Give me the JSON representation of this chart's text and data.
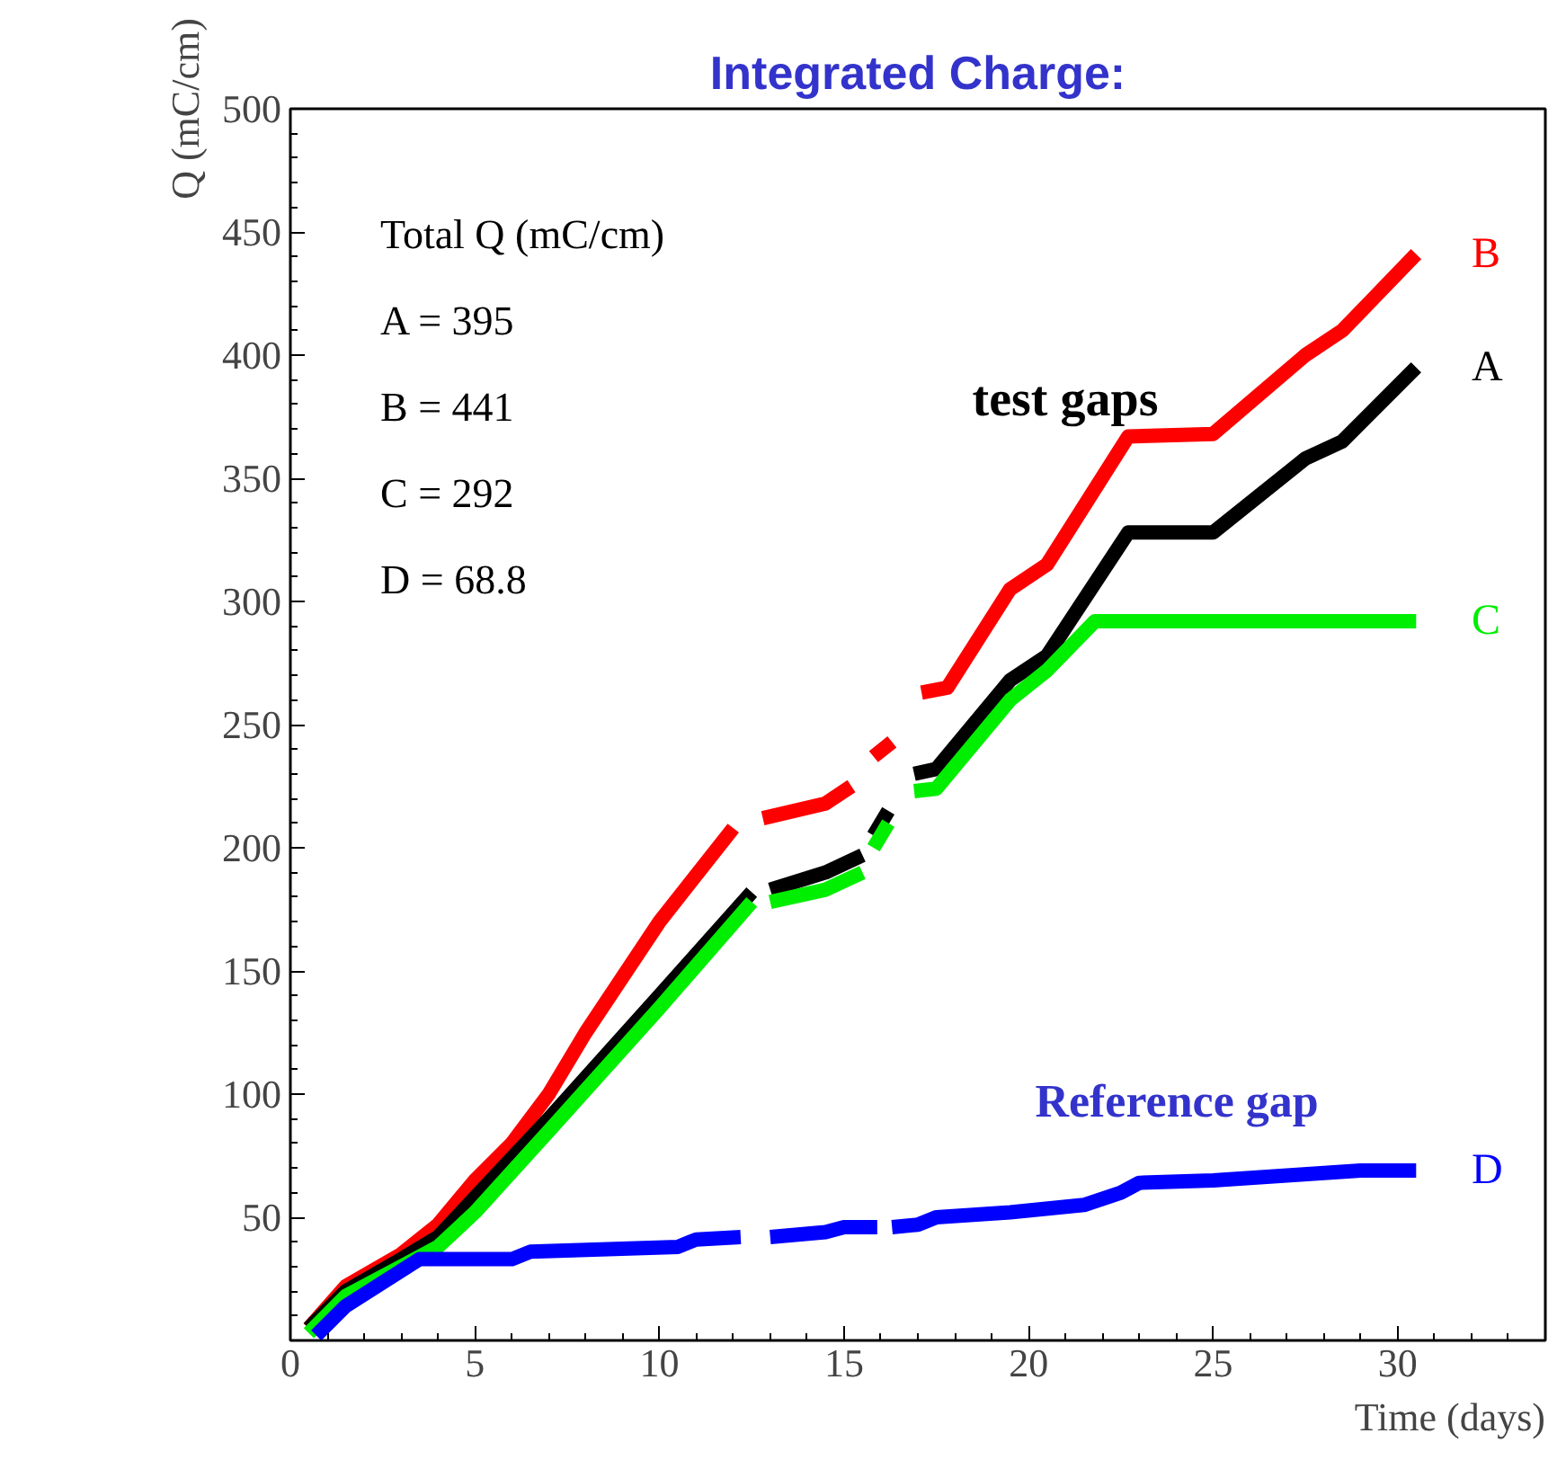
{
  "chart_data": {
    "type": "line",
    "title": "Integrated Charge:",
    "xlabel": "Time (days)",
    "ylabel": "Q (mC/cm)",
    "xlim": [
      0,
      34
    ],
    "ylim": [
      0,
      500
    ],
    "xticks": [
      0,
      5,
      10,
      15,
      20,
      25,
      30
    ],
    "yticks": [
      50,
      100,
      150,
      200,
      250,
      300,
      350,
      400,
      450,
      500
    ],
    "grid": false,
    "annotations": [
      "Total Q (mC/cm)",
      "A = 395",
      "B = 441",
      "C = 292",
      "D = 68.8",
      "test gaps",
      "Reference gap"
    ],
    "series": [
      {
        "name": "B",
        "color": "#ff0000",
        "x": [
          0.5,
          1.5,
          3,
          4,
          5,
          6,
          7,
          8,
          10,
          12,
          12.4,
          12.8,
          14.5,
          15.2,
          15.5,
          15.8,
          16.3,
          16.7,
          17.1,
          17.8,
          19.5,
          20.5,
          22.7,
          25,
          27.5,
          28.5,
          30.5
        ],
        "values": [
          5,
          22,
          35,
          47,
          65,
          80,
          100,
          125,
          170,
          208,
          null,
          212,
          218,
          225,
          null,
          237,
          243,
          null,
          263,
          265,
          305,
          315,
          367,
          368,
          400,
          410,
          441
        ]
      },
      {
        "name": "A",
        "color": "#000000",
        "x": [
          0.5,
          1.5,
          3,
          4,
          5,
          7,
          10,
          12.5,
          12.7,
          13,
          14.5,
          15.5,
          15.6,
          15.8,
          16.2,
          16.5,
          16.9,
          17.5,
          19.5,
          20.5,
          22.7,
          25,
          27.5,
          28.5,
          30.5
        ],
        "values": [
          5,
          20,
          33,
          42,
          58,
          90,
          140,
          182,
          null,
          183,
          190,
          197,
          null,
          205,
          215,
          null,
          230,
          232,
          268,
          278,
          328,
          328,
          358,
          365,
          395
        ]
      },
      {
        "name": "C",
        "color": "#00ee00",
        "x": [
          0.5,
          1.5,
          3,
          4,
          5,
          7,
          10,
          12.5,
          12.7,
          13,
          14.5,
          15.5,
          15.6,
          15.8,
          16.2,
          16.5,
          16.9,
          17.5,
          19.5,
          20.5,
          21.8,
          30.5
        ],
        "values": [
          3,
          18,
          30,
          38,
          52,
          85,
          135,
          178,
          null,
          178,
          183,
          190,
          null,
          200,
          210,
          null,
          223,
          224,
          260,
          272,
          292,
          292
        ]
      },
      {
        "name": "D",
        "color": "#0000ff",
        "x": [
          0.7,
          1.5,
          3.5,
          6,
          6.5,
          10.5,
          11,
          12.2,
          12.6,
          13,
          14.5,
          15,
          15.9,
          16.1,
          16.3,
          17,
          17.5,
          19.5,
          21.5,
          22.5,
          23,
          25,
          28,
          29,
          30.5
        ],
        "values": [
          2,
          14,
          33,
          33,
          36,
          38,
          41,
          42,
          null,
          42,
          44,
          46,
          46,
          null,
          46,
          47,
          50,
          52,
          55,
          60,
          64,
          65,
          68,
          69,
          69
        ]
      }
    ]
  }
}
